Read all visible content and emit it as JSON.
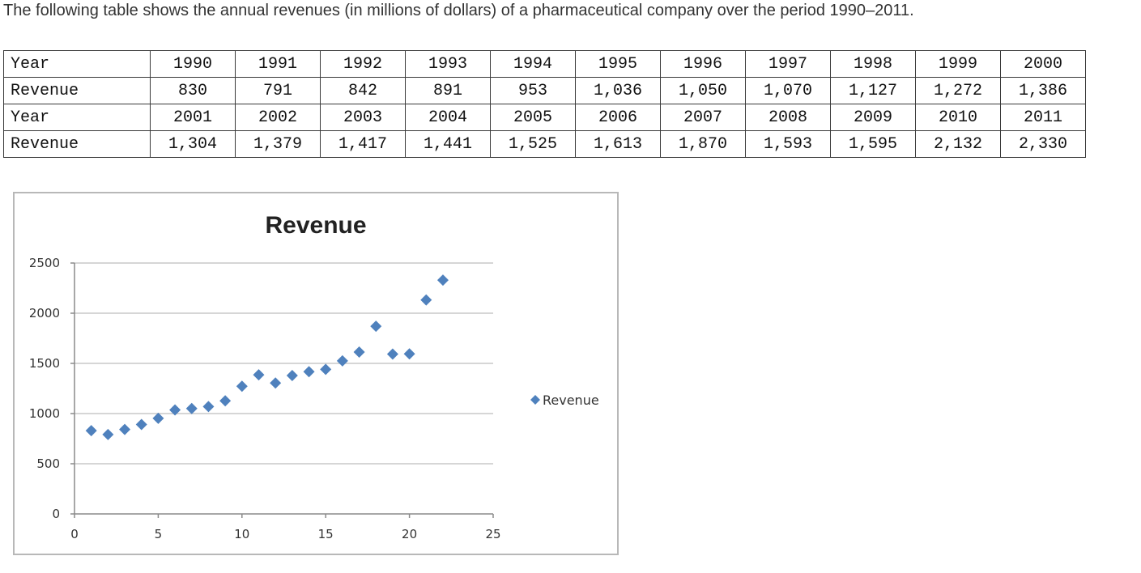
{
  "intro_text": "The following table shows the annual revenues (in millions of dollars) of a pharmaceutical company over the period 1990–2011.",
  "table": {
    "rows": [
      {
        "label": "Year",
        "cells": [
          "1990",
          "1991",
          "1992",
          "1993",
          "1994",
          "1995",
          "1996",
          "1997",
          "1998",
          "1999",
          "2000"
        ]
      },
      {
        "label": "Revenue",
        "cells": [
          "830",
          "791",
          "842",
          "891",
          "953",
          "1,036",
          "1,050",
          "1,070",
          "1,127",
          "1,272",
          "1,386"
        ]
      },
      {
        "label": "Year",
        "cells": [
          "2001",
          "2002",
          "2003",
          "2004",
          "2005",
          "2006",
          "2007",
          "2008",
          "2009",
          "2010",
          "2011"
        ]
      },
      {
        "label": "Revenue",
        "cells": [
          "1,304",
          "1,379",
          "1,417",
          "1,441",
          "1,525",
          "1,613",
          "1,870",
          "1,593",
          "1,595",
          "2,132",
          "2,330"
        ]
      }
    ]
  },
  "chart_data": {
    "type": "scatter",
    "title": "Revenue",
    "xlabel": "",
    "ylabel": "",
    "xlim": [
      0,
      25
    ],
    "ylim": [
      0,
      2500
    ],
    "x_ticks": [
      0,
      5,
      10,
      15,
      20,
      25
    ],
    "y_ticks": [
      0,
      500,
      1000,
      1500,
      2000,
      2500
    ],
    "grid": "horizontal",
    "legend_position": "right",
    "series": [
      {
        "name": "Revenue",
        "color": "#4f81bd",
        "marker": "diamond",
        "x": [
          1,
          2,
          3,
          4,
          5,
          6,
          7,
          8,
          9,
          10,
          11,
          12,
          13,
          14,
          15,
          16,
          17,
          18,
          19,
          20,
          21,
          22
        ],
        "y": [
          830,
          791,
          842,
          891,
          953,
          1036,
          1050,
          1070,
          1127,
          1272,
          1386,
          1304,
          1379,
          1417,
          1441,
          1525,
          1613,
          1870,
          1593,
          1595,
          2132,
          2330
        ]
      }
    ]
  }
}
